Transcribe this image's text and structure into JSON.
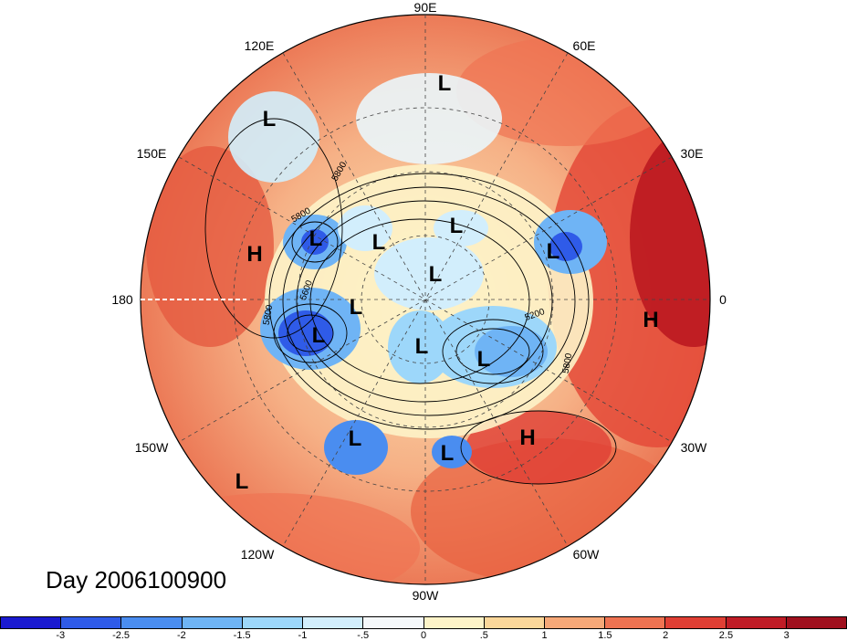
{
  "title": "Day 2006100900",
  "longitude_labels": {
    "top": "90E",
    "top_left": "120E",
    "top_right": "60E",
    "upper_left": "150E",
    "upper_right": "30E",
    "left": "180",
    "right": "0",
    "lower_left": "150W",
    "lower_right": "30W",
    "bottom_left": "120W",
    "bottom_right": "60W",
    "bottom": "90W"
  },
  "pressure_centers": [
    {
      "type": "L"
    },
    {
      "type": "L"
    },
    {
      "type": "L"
    },
    {
      "type": "L"
    },
    {
      "type": "L"
    },
    {
      "type": "L"
    },
    {
      "type": "L"
    },
    {
      "type": "L"
    },
    {
      "type": "L"
    },
    {
      "type": "L"
    },
    {
      "type": "L"
    },
    {
      "type": "L"
    },
    {
      "type": "L"
    },
    {
      "type": "L"
    },
    {
      "type": "H"
    },
    {
      "type": "H"
    },
    {
      "type": "H"
    }
  ],
  "contour_labels": [
    "5800",
    "5800",
    "5600",
    "5800",
    "5800",
    "5200"
  ],
  "colorbar": {
    "ticks": [
      "-3",
      "-2.5",
      "-2",
      "-1.5",
      "-1",
      "-.5",
      "0",
      ".5",
      "1",
      "1.5",
      "2",
      "2.5",
      "3"
    ],
    "colors": [
      "#1a1ad0",
      "#2f5be8",
      "#4a8df0",
      "#6fb4f5",
      "#9dd7fa",
      "#d2eefc",
      "#f5f8fa",
      "#fdf3c8",
      "#fbd79a",
      "#f6a878",
      "#ef7352",
      "#e03f34",
      "#c01c26",
      "#a0101e"
    ]
  }
}
